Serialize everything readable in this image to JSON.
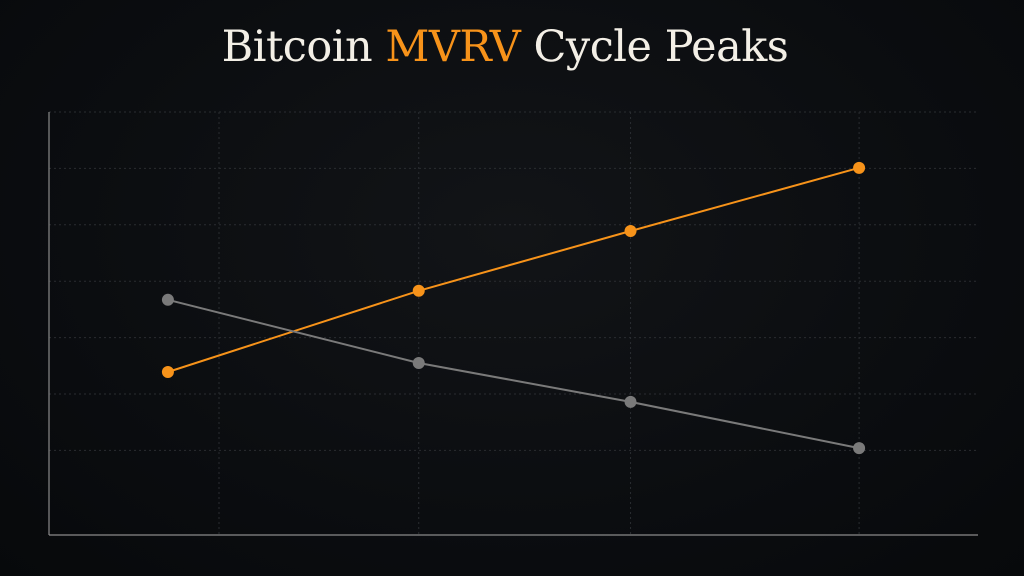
{
  "title": {
    "pre": "Bitcoin ",
    "highlight": "MVRV",
    "post": " Cycle Peaks"
  },
  "colors": {
    "accent": "#f7931a",
    "secondary": "#7a7a7a",
    "background": "#0b0d10",
    "grid": "#2a2d31",
    "axis": "#8a8a8a"
  },
  "chart_data": {
    "type": "line",
    "title": "Bitcoin MVRV Cycle Peaks",
    "xlabel": "",
    "ylabel": "",
    "xlim": [
      0,
      10
    ],
    "ylim": [
      0,
      7.5
    ],
    "grid": true,
    "x_gridlines": [
      1.83,
      3.98,
      6.26,
      8.72
    ],
    "y_gridlines": [
      1.5,
      2.5,
      3.5,
      4.5,
      5.5,
      6.5,
      7.5
    ],
    "x": [
      1.28,
      3.98,
      6.26,
      8.72
    ],
    "series": [
      {
        "color": "#f7931a",
        "values": [
          2.89,
          4.33,
          5.39,
          6.51
        ]
      },
      {
        "color": "#7a7a7a",
        "values": [
          4.17,
          3.05,
          2.36,
          1.54
        ]
      }
    ]
  }
}
